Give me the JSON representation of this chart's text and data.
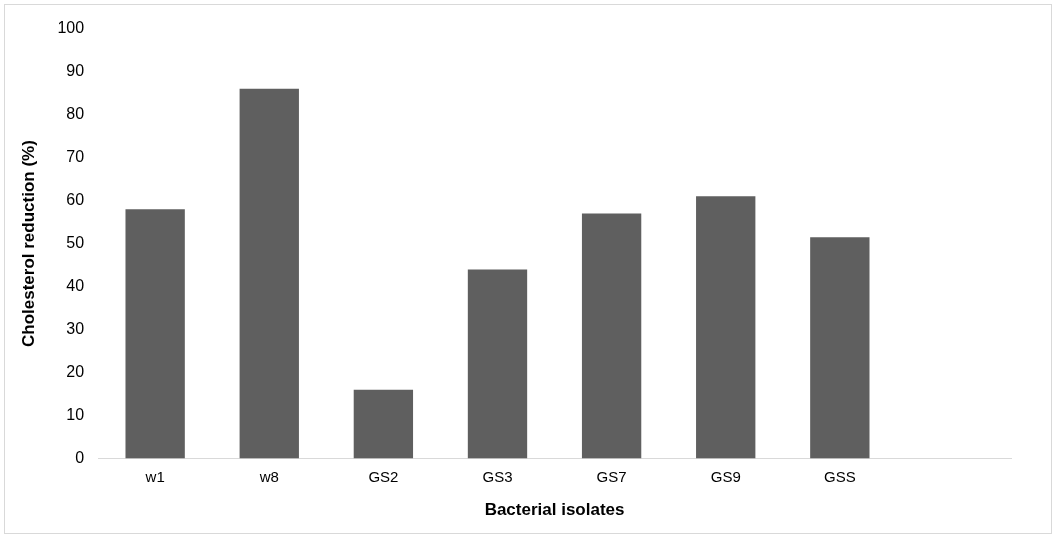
{
  "chart_data": {
    "type": "bar",
    "xlabel": "Bacterial isolates",
    "ylabel": "Cholesterol reduction (%)",
    "categories": [
      "w1",
      "w8",
      "GS2",
      "GS3",
      "GS7",
      "GS9",
      "GSS",
      null
    ],
    "values": [
      58,
      86,
      16,
      44,
      57,
      61,
      51.5,
      null
    ],
    "color": "#5f5f5f",
    "ylim": [
      0,
      100
    ],
    "yticks": [
      0,
      10,
      20,
      30,
      40,
      50,
      60,
      70,
      80,
      90,
      100
    ],
    "grid": false,
    "legend": false
  }
}
